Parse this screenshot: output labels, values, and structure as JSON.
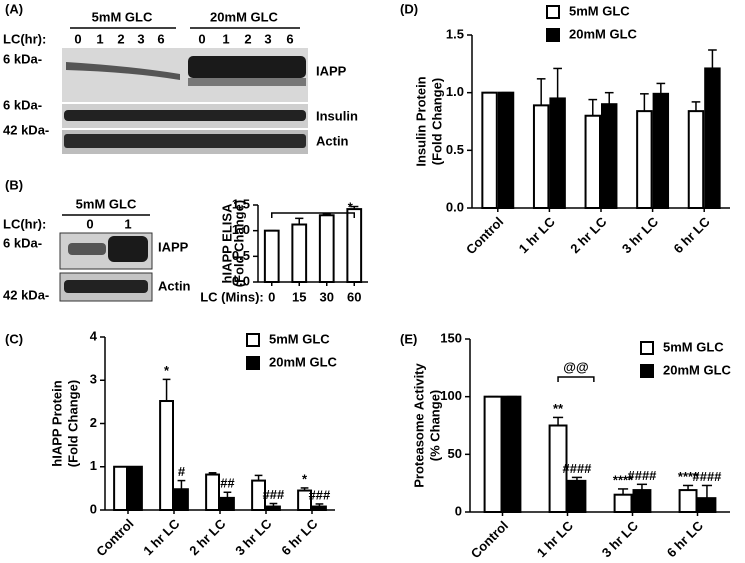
{
  "blots": {
    "a": {
      "label": "(A)",
      "group1": "5mM GLC",
      "group2": "20mM GLC",
      "lc": "LC(hr):",
      "lanes1": [
        "0",
        "1",
        "2",
        "3",
        "6"
      ],
      "lanes2": [
        "0",
        "1",
        "2",
        "3",
        "6"
      ],
      "sizes": [
        "6 kDa-",
        "6 kDa-",
        "42 kDa-"
      ],
      "proteins": [
        "IAPP",
        "Insulin",
        "Actin"
      ]
    },
    "b": {
      "label": "(B)",
      "group": "5mM GLC",
      "lc": "LC(hr):",
      "lanes": [
        "0",
        "1"
      ],
      "sizes": [
        "6 kDa-",
        "42 kDa-"
      ],
      "proteins": [
        "IAPP",
        "Actin"
      ]
    }
  },
  "chart_data": [
    {
      "type": "bar",
      "ylabel": [
        "hIAPP ELISA",
        "(Fold Change)"
      ],
      "xlabel": "LC (Mins):",
      "categories": [
        "0",
        "15",
        "30",
        "60"
      ],
      "values": [
        1.0,
        1.12,
        1.3,
        1.42
      ],
      "errors": [
        0,
        0.12,
        0.03,
        0.05
      ],
      "color": "#ffffff",
      "bracket_label": "*",
      "ylim": [
        0,
        1.5
      ],
      "yticks": [
        {
          "value": 0,
          "label": "0.0"
        },
        0.5,
        {
          "value": 1,
          "label": "1.0"
        },
        1.5
      ]
    },
    {
      "type": "bar",
      "label": "(C)",
      "ylabel": [
        "hIAPP Protein",
        "(Fold Change)"
      ],
      "categories": [
        "Control",
        "1 hr LC",
        "2 hr LC",
        "3 hr LC",
        "6 hr LC"
      ],
      "series": [
        {
          "name": "5mM GLC",
          "color": "#ffffff",
          "values": [
            1.0,
            2.52,
            0.82,
            0.68,
            0.45
          ],
          "errors": [
            0,
            0.5,
            0.04,
            0.12,
            0.06
          ],
          "annotations": [
            null,
            "*",
            null,
            null,
            "*"
          ]
        },
        {
          "name": "20mM GLC",
          "color": "#000000",
          "values": [
            1.0,
            0.48,
            0.28,
            0.08,
            0.08
          ],
          "errors": [
            0,
            0.2,
            0.13,
            0.07,
            0.06
          ],
          "annotations": [
            null,
            "#",
            "##",
            "###",
            "###"
          ]
        }
      ],
      "ylim": [
        0,
        4
      ],
      "yticks": [
        0,
        1,
        2,
        3,
        4
      ]
    },
    {
      "type": "bar",
      "label": "(D)",
      "ylabel": [
        "Insulin Protein",
        "(Fold Change)"
      ],
      "categories": [
        "Control",
        "1 hr LC",
        "2 hr LC",
        "3 hr LC",
        "6 hr LC"
      ],
      "series": [
        {
          "name": "5mM GLC",
          "color": "#ffffff",
          "values": [
            1.0,
            0.89,
            0.8,
            0.84,
            0.84
          ],
          "errors": [
            0,
            0.23,
            0.14,
            0.15,
            0.08
          ]
        },
        {
          "name": "20mM GLC",
          "color": "#000000",
          "values": [
            1.0,
            0.95,
            0.9,
            0.99,
            1.21
          ],
          "errors": [
            0,
            0.26,
            0.1,
            0.09,
            0.16
          ]
        }
      ],
      "ylim": [
        0,
        1.5
      ],
      "yticks": [
        {
          "value": 0,
          "label": "0.0"
        },
        0.5,
        {
          "value": 1,
          "label": "1.0"
        },
        1.5
      ]
    },
    {
      "type": "bar",
      "label": "(E)",
      "ylabel": [
        "Proteasome Activity",
        "(% Change)"
      ],
      "categories": [
        "Control",
        "1 hr LC",
        "3 hr LC",
        "6 hr LC"
      ],
      "series": [
        {
          "name": "5mM GLC",
          "color": "#ffffff",
          "values": [
            100,
            75,
            15,
            19
          ],
          "errors": [
            0,
            7,
            5,
            4
          ],
          "annotations": [
            null,
            "**",
            "****",
            "****"
          ]
        },
        {
          "name": "20mM GLC",
          "color": "#000000",
          "values": [
            100,
            27,
            19,
            12
          ],
          "errors": [
            0,
            3,
            5,
            11
          ],
          "annotations": [
            null,
            "####",
            "####",
            "####"
          ]
        }
      ],
      "bracket_label": "@@",
      "ylim": [
        0,
        150
      ],
      "yticks": [
        0,
        50,
        100,
        150
      ]
    }
  ]
}
